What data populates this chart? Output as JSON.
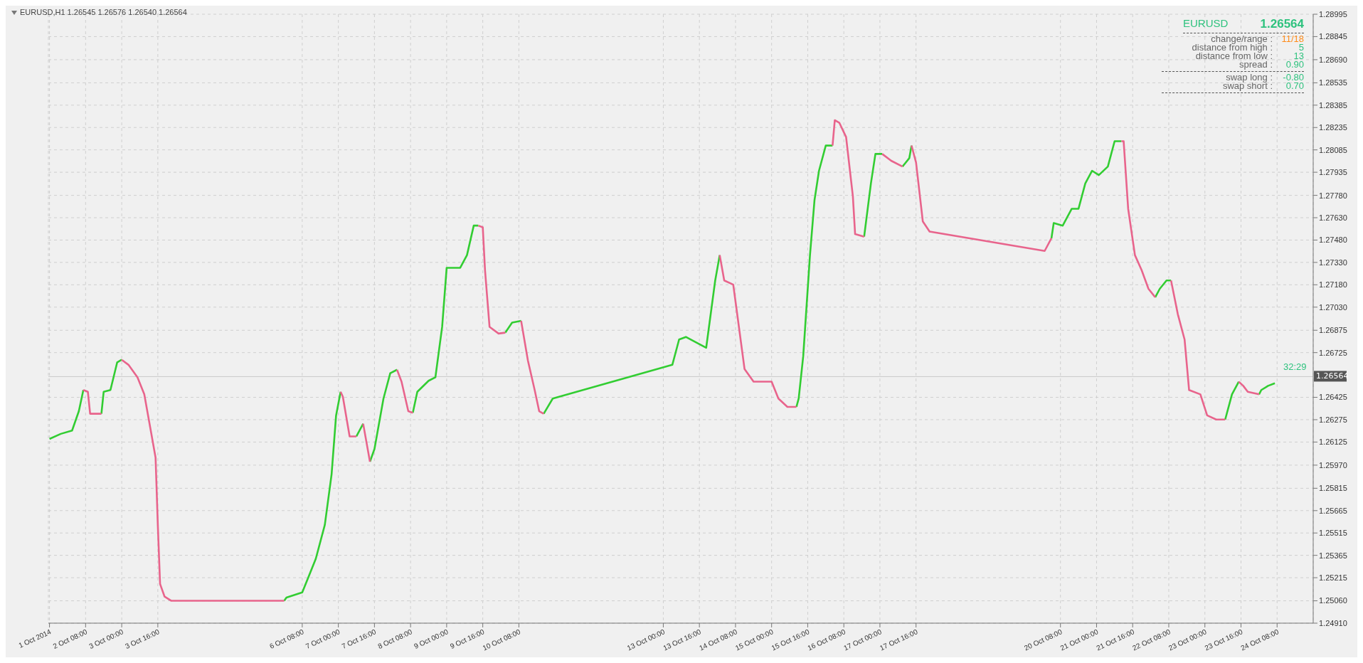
{
  "chart_data": {
    "type": "line",
    "title": "EURUSD,H1  1.26545 1.26576 1.26540 1.26564",
    "series": [
      {
        "color": "#32cd32",
        "x": [
          "2014-10-01T16:00",
          "2014-10-01T21:00",
          "2014-10-02T02:00",
          "2014-10-02T05:00",
          "2014-10-02T07:00",
          "2014-10-02T11:00",
          "2014-10-02T15:00",
          "2014-10-02T16:00",
          "2014-10-02T19:00",
          "2014-10-02T22:00",
          "2014-10-03T00:00",
          "2014-10-03T12:00",
          "2014-10-06T00:00",
          "2014-10-06T01:00",
          "2014-10-06T08:00",
          "2014-10-06T11:00",
          "2014-10-06T14:00",
          "2014-10-06T18:00",
          "2014-10-06T21:00",
          "2014-10-06T23:00",
          "2014-10-07T01:00",
          "2014-10-07T05:00",
          "2014-10-07T08:00",
          "2014-10-07T11:00",
          "2014-10-07T12:00",
          "2014-10-07T14:00",
          "2014-10-07T16:00",
          "2014-10-07T20:00",
          "2014-10-07T23:00",
          "2014-10-08T02:00",
          "2014-10-08T06:00",
          "2014-10-08T09:00",
          "2014-10-08T11:00",
          "2014-10-08T16:00",
          "2014-10-08T19:00",
          "2014-10-08T22:00",
          "2014-10-09T00:00",
          "2014-10-09T06:00",
          "2014-10-09T09:00",
          "2014-10-09T12:00",
          "2014-10-09T14:00",
          "2014-10-09T22:00",
          "2014-10-10T02:00",
          "2014-10-10T05:00",
          "2014-10-10T09:00",
          "2014-10-10T14:00",
          "2014-10-10T19:00",
          "2014-10-10T23:00",
          "2014-10-13T04:00",
          "2014-10-13T07:00",
          "2014-10-13T10:00",
          "2014-10-13T19:00",
          "2014-10-13T23:00",
          "2014-10-14T01:00",
          "2014-10-14T20:00",
          "2014-10-15T11:00",
          "2014-10-15T12:00",
          "2014-10-15T14:00",
          "2014-10-15T17:00",
          "2014-10-15T19:00",
          "2014-10-15T21:00",
          "2014-10-16T00:00",
          "2014-10-16T03:00",
          "2014-10-16T10:00",
          "2014-10-16T17:00",
          "2014-10-16T20:00",
          "2014-10-16T22:00",
          "2014-10-17T01:00",
          "2014-10-17T06:00",
          "2014-10-17T10:00",
          "2014-10-17T13:00",
          "2014-10-17T14:00",
          "2014-10-17T23:00",
          "2014-10-20T04:00",
          "2014-10-20T05:00",
          "2014-10-20T09:00",
          "2014-10-20T13:00",
          "2014-10-20T16:00",
          "2014-10-20T19:00",
          "2014-10-20T22:00",
          "2014-10-21T01:00",
          "2014-10-21T05:00",
          "2014-10-21T08:00",
          "2014-10-21T11:00",
          "2014-10-21T20:00",
          "2014-10-22T02:00",
          "2014-10-22T04:00",
          "2014-10-22T07:00",
          "2014-10-22T09:00",
          "2014-10-22T21:00",
          "2014-10-23T09:00",
          "2014-10-23T12:00",
          "2014-10-23T15:00",
          "2014-10-23T20:00",
          "2014-10-24T00:00",
          "2014-10-24T01:00",
          "2014-10-24T04:00",
          "2014-10-24T07:00"
        ],
        "values": [
          1.26146,
          1.2618,
          1.26202,
          1.26332,
          1.26474,
          null,
          1.26315,
          1.26462,
          1.26474,
          1.2666,
          1.26677,
          null,
          1.2506,
          1.25082,
          1.25116,
          1.25229,
          1.25342,
          1.25569,
          1.25908,
          1.26304,
          1.26462,
          null,
          1.26163,
          1.26248,
          null,
          1.25993,
          1.26078,
          1.26417,
          1.26587,
          1.2661,
          null,
          1.26321,
          1.26462,
          1.26536,
          1.26559,
          1.26898,
          1.27294,
          1.27294,
          1.27379,
          1.27577,
          1.27577,
          null,
          1.26859,
          1.26926,
          1.26938,
          null,
          1.26315,
          1.26417,
          1.26643,
          1.26813,
          1.2683,
          1.26757,
          1.27209,
          1.27379,
          null,
          1.26361,
          1.26417,
          1.267,
          1.27379,
          1.27747,
          1.27945,
          1.28114,
          1.28114,
          null,
          1.27503,
          1.2786,
          1.28058,
          1.28058,
          null,
          1.27973,
          1.28029,
          1.28114,
          null,
          1.27492,
          1.27594,
          1.27577,
          1.2769,
          1.2769,
          1.2786,
          1.27945,
          1.27916,
          1.27973,
          1.28143,
          1.28143,
          null,
          1.27096,
          1.27153,
          1.27209,
          1.27209,
          null,
          1.26276,
          1.26445,
          1.2653,
          null,
          1.26445,
          1.26474,
          1.26502,
          1.26519
        ]
      },
      {
        "color": "#e8648c",
        "x": [
          "2014-10-02T07:00",
          "2014-10-02T09:00",
          "2014-10-02T10:00",
          "2014-10-02T15:00",
          "2014-10-02T19:00",
          "2014-10-03T00:00",
          "2014-10-03T03:00",
          "2014-10-03T07:00",
          "2014-10-03T10:00",
          "2014-10-03T13:00",
          "2014-10-03T15:00",
          "2014-10-03T16:00",
          "2014-10-03T17:00",
          "2014-10-03T19:00",
          "2014-10-03T22:00",
          "2014-10-06T00:00",
          "2014-10-06T14:00",
          "2014-10-07T01:00",
          "2014-10-07T02:00",
          "2014-10-07T05:00",
          "2014-10-07T08:00",
          "2014-10-07T09:00",
          "2014-10-07T11:00",
          "2014-10-07T14:00",
          "2014-10-07T20:00",
          "2014-10-08T02:00",
          "2014-10-08T04:00",
          "2014-10-08T07:00",
          "2014-10-08T09:00",
          "2014-10-08T16:00",
          "2014-10-09T14:00",
          "2014-10-09T16:00",
          "2014-10-09T17:00",
          "2014-10-09T19:00",
          "2014-10-09T23:00",
          "2014-10-10T02:00",
          "2014-10-10T05:00",
          "2014-10-10T09:00",
          "2014-10-10T12:00",
          "2014-10-10T15:00",
          "2014-10-10T17:00",
          "2014-10-10T19:00",
          "2014-10-13T14:00",
          "2014-10-14T01:00",
          "2014-10-14T03:00",
          "2014-10-14T07:00",
          "2014-10-14T09:00",
          "2014-10-14T12:00",
          "2014-10-14T16:00",
          "2014-10-15T00:00",
          "2014-10-15T03:00",
          "2014-10-15T07:00",
          "2014-10-15T11:00",
          "2014-10-15T16:00",
          "2014-10-16T03:00",
          "2014-10-16T04:00",
          "2014-10-16T06:00",
          "2014-10-16T09:00",
          "2014-10-16T12:00",
          "2014-10-16T13:00",
          "2014-10-16T17:00",
          "2014-10-16T20:00",
          "2014-10-17T01:00",
          "2014-10-17T05:00",
          "2014-10-17T10:00",
          "2014-10-17T12:00",
          "2014-10-17T14:00",
          "2014-10-17T16:00",
          "2014-10-17T19:00",
          "2014-10-17T22:00",
          "2014-10-20T01:00",
          "2014-10-20T04:00",
          "2014-10-21T00:00",
          "2014-10-21T11:00",
          "2014-10-21T12:00",
          "2014-10-21T14:00",
          "2014-10-21T17:00",
          "2014-10-21T20:00",
          "2014-10-21T23:00",
          "2014-10-22T02:00",
          "2014-10-22T06:00",
          "2014-10-22T09:00",
          "2014-10-22T12:00",
          "2014-10-22T15:00",
          "2014-10-22T17:00",
          "2014-10-22T22:00",
          "2014-10-23T01:00",
          "2014-10-23T05:00",
          "2014-10-23T09:00",
          "2014-10-23T12:00",
          "2014-10-23T15:00",
          "2014-10-23T17:00",
          "2014-10-23T19:00",
          "2014-10-24T00:00"
        ],
        "values": [
          1.26474,
          1.26462,
          1.26315,
          1.26315,
          null,
          1.26677,
          1.26643,
          1.26559,
          1.26445,
          1.26191,
          1.26021,
          1.25569,
          1.25173,
          1.25088,
          1.2506,
          1.2506,
          null,
          1.26462,
          1.26429,
          1.26163,
          1.26163,
          null,
          1.26248,
          1.25993,
          null,
          1.2661,
          1.2653,
          1.26332,
          1.26321,
          null,
          1.27577,
          1.27566,
          1.27277,
          1.26898,
          1.26853,
          1.26859,
          null,
          1.26938,
          1.26672,
          1.26474,
          1.26332,
          1.26315,
          null,
          1.27379,
          1.27209,
          1.27181,
          1.26955,
          1.26615,
          1.2653,
          1.2653,
          1.26417,
          1.26361,
          1.26361,
          null,
          1.28114,
          1.28284,
          1.28267,
          1.28171,
          1.27775,
          1.2752,
          1.27503,
          null,
          1.28058,
          1.28012,
          1.27973,
          null,
          1.28114,
          1.28001,
          1.27605,
          1.27537,
          1.27407,
          1.27492,
          null,
          1.28143,
          1.28143,
          1.2769,
          1.27379,
          1.27277,
          1.27153,
          1.27096,
          null,
          1.27209,
          1.26983,
          1.26813,
          1.26474,
          1.26445,
          1.26304,
          1.26276,
          1.26276,
          null,
          1.2653,
          1.26502,
          1.26462,
          1.26445
        ]
      }
    ],
    "xlim": [
      "2014-10-01T15:30",
      "2014-10-25T00:00"
    ],
    "xticks": [
      {
        "value": "2014-10-01T16:00",
        "label": "1 Oct 2014"
      },
      {
        "value": "2014-10-02T08:00",
        "label": "2 Oct 08:00"
      },
      {
        "value": "2014-10-03T00:00",
        "label": "3 Oct 00:00"
      },
      {
        "value": "2014-10-03T16:00",
        "label": "3 Oct 16:00"
      },
      {
        "value": "2014-10-06T08:00",
        "label": "6 Oct 08:00"
      },
      {
        "value": "2014-10-07T00:00",
        "label": "7 Oct 00:00"
      },
      {
        "value": "2014-10-07T16:00",
        "label": "7 Oct 16:00"
      },
      {
        "value": "2014-10-08T08:00",
        "label": "8 Oct 08:00"
      },
      {
        "value": "2014-10-09T00:00",
        "label": "9 Oct 00:00"
      },
      {
        "value": "2014-10-09T16:00",
        "label": "9 Oct 16:00"
      },
      {
        "value": "2014-10-10T08:00",
        "label": "10 Oct 08:00"
      },
      {
        "value": "2014-10-13T00:00",
        "label": "13 Oct 00:00"
      },
      {
        "value": "2014-10-13T16:00",
        "label": "13 Oct 16:00"
      },
      {
        "value": "2014-10-14T08:00",
        "label": "14 Oct 08:00"
      },
      {
        "value": "2014-10-15T00:00",
        "label": "15 Oct 00:00"
      },
      {
        "value": "2014-10-15T16:00",
        "label": "15 Oct 16:00"
      },
      {
        "value": "2014-10-16T08:00",
        "label": "16 Oct 08:00"
      },
      {
        "value": "2014-10-17T00:00",
        "label": "17 Oct 00:00"
      },
      {
        "value": "2014-10-17T16:00",
        "label": "17 Oct 16:00"
      },
      {
        "value": "2014-10-20T08:00",
        "label": "20 Oct 08:00"
      },
      {
        "value": "2014-10-21T00:00",
        "label": "21 Oct 00:00"
      },
      {
        "value": "2014-10-21T16:00",
        "label": "21 Oct 16:00"
      },
      {
        "value": "2014-10-22T08:00",
        "label": "22 Oct 08:00"
      },
      {
        "value": "2014-10-23T00:00",
        "label": "23 Oct 00:00"
      },
      {
        "value": "2014-10-23T16:00",
        "label": "23 Oct 16:00"
      },
      {
        "value": "2014-10-24T08:00",
        "label": "24 Oct 08:00"
      }
    ],
    "ylim": [
      1.2491,
      1.28995
    ],
    "yticks": [
      {
        "value": 1.28995,
        "label": "1.28995"
      },
      {
        "value": 1.28845,
        "label": "1.28845"
      },
      {
        "value": 1.2869,
        "label": "1.28690"
      },
      {
        "value": 1.28535,
        "label": "1.28535"
      },
      {
        "value": 1.28385,
        "label": "1.28385"
      },
      {
        "value": 1.28235,
        "label": "1.28235"
      },
      {
        "value": 1.28085,
        "label": "1.28085"
      },
      {
        "value": 1.27935,
        "label": "1.27935"
      },
      {
        "value": 1.2778,
        "label": "1.27780"
      },
      {
        "value": 1.2763,
        "label": "1.27630"
      },
      {
        "value": 1.2748,
        "label": "1.27480"
      },
      {
        "value": 1.2733,
        "label": "1.27330"
      },
      {
        "value": 1.2718,
        "label": "1.27180"
      },
      {
        "value": 1.2703,
        "label": "1.27030"
      },
      {
        "value": 1.26875,
        "label": "1.26875"
      },
      {
        "value": 1.26725,
        "label": "1.26725"
      },
      {
        "value": 1.26425,
        "label": "1.26425"
      },
      {
        "value": 1.26275,
        "label": "1.26275"
      },
      {
        "value": 1.26125,
        "label": "1.26125"
      },
      {
        "value": 1.2597,
        "label": "1.25970"
      },
      {
        "value": 1.25815,
        "label": "1.25815"
      },
      {
        "value": 1.25665,
        "label": "1.25665"
      },
      {
        "value": 1.25515,
        "label": "1.25515"
      },
      {
        "value": 1.25365,
        "label": "1.25365"
      },
      {
        "value": 1.25215,
        "label": "1.25215"
      },
      {
        "value": 1.2506,
        "label": "1.25060"
      },
      {
        "value": 1.2491,
        "label": "1.24910"
      }
    ],
    "ref_lines": [
      {
        "axis": "y",
        "value": 1.26564,
        "label": "1.26564",
        "color": "#c8c8c8"
      }
    ],
    "annotations": [
      "EURUSD",
      "1.26564",
      "change/range :",
      "11/18",
      "distance from high :",
      "5",
      "distance from low :",
      "13",
      "spread :",
      "0.90",
      "swap long :",
      "-0.80",
      "swap short :",
      "0.70",
      "32:29"
    ],
    "grid": true,
    "marker": "none",
    "line_style": "solid"
  }
}
